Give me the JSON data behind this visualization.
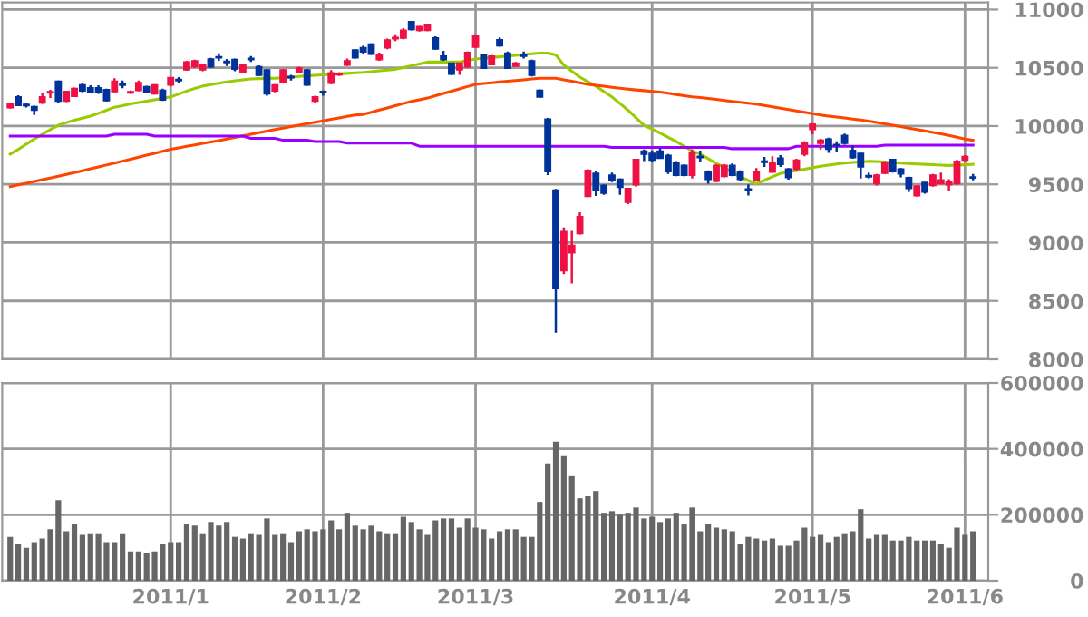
{
  "chart_data": [
    {
      "type": "candlestick",
      "tick_labels": "y",
      "grid": true,
      "ylim": [
        8000,
        11060
      ],
      "yticks": [
        8000,
        8500,
        9000,
        9500,
        10000,
        10500,
        11000
      ],
      "categories": [
        null,
        null,
        null,
        null,
        null,
        null,
        null,
        null,
        null,
        null,
        null,
        null,
        null,
        null,
        null,
        null,
        null,
        null,
        null,
        null,
        "2011/1",
        null,
        null,
        null,
        null,
        null,
        null,
        null,
        null,
        null,
        null,
        null,
        null,
        null,
        null,
        null,
        null,
        null,
        null,
        "2011/2",
        null,
        null,
        null,
        null,
        null,
        null,
        null,
        null,
        null,
        null,
        null,
        null,
        null,
        null,
        null,
        null,
        null,
        null,
        "2011/3",
        null,
        null,
        null,
        null,
        null,
        null,
        null,
        null,
        null,
        null,
        null,
        null,
        null,
        null,
        null,
        null,
        null,
        null,
        null,
        null,
        null,
        "2011/4",
        null,
        null,
        null,
        null,
        null,
        null,
        null,
        null,
        null,
        null,
        null,
        null,
        null,
        null,
        null,
        null,
        null,
        null,
        null,
        "2011/5",
        null,
        null,
        null,
        null,
        null,
        null,
        null,
        null,
        null,
        null,
        null,
        null,
        null,
        null,
        null,
        null,
        null,
        null,
        "2011/6",
        null
      ],
      "ohlc": [
        [
          10157,
          10200,
          10150,
          10188
        ],
        [
          10250,
          10265,
          10170,
          10178
        ],
        [
          10185,
          10200,
          10160,
          10175
        ],
        [
          10167,
          10175,
          10095,
          10136
        ],
        [
          10198,
          10280,
          10190,
          10250
        ],
        [
          10285,
          10310,
          10240,
          10295
        ],
        [
          10384,
          10390,
          10200,
          10214
        ],
        [
          10214,
          10300,
          10205,
          10296
        ],
        [
          10255,
          10330,
          10250,
          10322
        ],
        [
          10353,
          10370,
          10290,
          10302
        ],
        [
          10327,
          10350,
          10280,
          10290
        ],
        [
          10327,
          10350,
          10275,
          10286
        ],
        [
          10312,
          10320,
          10210,
          10219
        ],
        [
          10296,
          10410,
          10290,
          10384
        ],
        [
          10358,
          10390,
          10325,
          10350
        ],
        [
          10285,
          10305,
          10275,
          10295
        ],
        [
          10306,
          10390,
          10300,
          10373
        ],
        [
          10337,
          10345,
          10285,
          10290
        ],
        [
          10276,
          10360,
          10270,
          10353
        ],
        [
          10307,
          10320,
          10215,
          10224
        ],
        [
          10353,
          10420,
          10340,
          10415
        ],
        [
          10400,
          10420,
          10370,
          10390
        ],
        [
          10482,
          10560,
          10475,
          10549
        ],
        [
          10510,
          10570,
          10500,
          10560
        ],
        [
          10482,
          10535,
          10470,
          10523
        ],
        [
          10575,
          10585,
          10500,
          10508
        ],
        [
          10595,
          10625,
          10560,
          10585
        ],
        [
          10555,
          10575,
          10515,
          10545
        ],
        [
          10570,
          10580,
          10470,
          10488
        ],
        [
          10461,
          10530,
          10455,
          10523
        ],
        [
          10580,
          10600,
          10550,
          10570
        ],
        [
          10508,
          10520,
          10430,
          10436
        ],
        [
          10482,
          10490,
          10260,
          10276
        ],
        [
          10302,
          10360,
          10290,
          10353
        ],
        [
          10373,
          10490,
          10365,
          10482
        ],
        [
          10425,
          10440,
          10390,
          10415
        ],
        [
          10461,
          10510,
          10450,
          10497
        ],
        [
          10482,
          10490,
          10345,
          10353
        ],
        [
          10214,
          10260,
          10200,
          10250
        ],
        [
          10296,
          10305,
          10260,
          10286
        ],
        [
          10368,
          10480,
          10360,
          10456
        ],
        [
          10440,
          10460,
          10430,
          10450
        ],
        [
          10523,
          10580,
          10515,
          10560
        ],
        [
          10652,
          10660,
          10580,
          10585
        ],
        [
          10672,
          10690,
          10620,
          10636
        ],
        [
          10703,
          10710,
          10610,
          10616
        ],
        [
          10570,
          10630,
          10560,
          10616
        ],
        [
          10672,
          10750,
          10660,
          10739
        ],
        [
          10750,
          10780,
          10730,
          10760
        ],
        [
          10755,
          10840,
          10745,
          10822
        ],
        [
          10895,
          10900,
          10820,
          10828
        ],
        [
          10822,
          10860,
          10810,
          10853
        ],
        [
          10822,
          10870,
          10815,
          10864
        ],
        [
          10755,
          10770,
          10655,
          10662
        ],
        [
          10600,
          10645,
          10560,
          10570
        ],
        [
          10539,
          10545,
          10435,
          10446
        ],
        [
          10482,
          10545,
          10440,
          10539
        ],
        [
          10508,
          10640,
          10500,
          10631
        ],
        [
          10678,
          10780,
          10670,
          10771
        ],
        [
          10611,
          10620,
          10490,
          10497
        ],
        [
          10528,
          10610,
          10520,
          10600
        ],
        [
          10740,
          10760,
          10680,
          10688
        ],
        [
          10626,
          10640,
          10490,
          10497
        ],
        [
          10513,
          10550,
          10510,
          10539
        ],
        [
          10616,
          10640,
          10580,
          10600
        ],
        [
          10560,
          10570,
          10425,
          10436
        ],
        [
          10307,
          10315,
          10245,
          10250
        ],
        [
          10059,
          10070,
          9580,
          9610
        ],
        [
          9450,
          9460,
          8227,
          8609
        ],
        [
          8759,
          9130,
          8730,
          9094
        ],
        [
          8913,
          9100,
          8650,
          8975
        ],
        [
          9078,
          9260,
          9070,
          9223
        ],
        [
          9398,
          9630,
          9390,
          9620
        ],
        [
          9594,
          9610,
          9400,
          9450
        ],
        [
          9491,
          9500,
          9410,
          9424
        ],
        [
          9579,
          9600,
          9520,
          9538
        ],
        [
          9543,
          9550,
          9410,
          9476
        ],
        [
          9347,
          9470,
          9330,
          9465
        ],
        [
          9496,
          9720,
          9480,
          9713
        ],
        [
          9785,
          9800,
          9700,
          9760
        ],
        [
          9765,
          9790,
          9690,
          9708
        ],
        [
          9785,
          9810,
          9720,
          9724
        ],
        [
          9749,
          9760,
          9590,
          9610
        ],
        [
          9682,
          9700,
          9570,
          9579
        ],
        [
          9662,
          9670,
          9570,
          9579
        ],
        [
          9579,
          9800,
          9550,
          9775
        ],
        [
          9740,
          9790,
          9690,
          9730
        ],
        [
          9610,
          9620,
          9505,
          9543
        ],
        [
          9527,
          9670,
          9520,
          9662
        ],
        [
          9569,
          9675,
          9560,
          9662
        ],
        [
          9662,
          9680,
          9570,
          9579
        ],
        [
          9610,
          9620,
          9530,
          9543
        ],
        [
          9460,
          9500,
          9405,
          9450
        ],
        [
          9533,
          9640,
          9525,
          9605
        ],
        [
          9700,
          9735,
          9650,
          9690
        ],
        [
          9605,
          9740,
          9600,
          9687
        ],
        [
          9724,
          9750,
          9650,
          9672
        ],
        [
          9631,
          9640,
          9540,
          9559
        ],
        [
          9631,
          9720,
          9620,
          9708
        ],
        [
          9760,
          9870,
          9740,
          9853
        ],
        [
          9971,
          10025,
          9930,
          10017
        ],
        [
          9853,
          9890,
          9800,
          9879
        ],
        [
          9889,
          9900,
          9770,
          9801
        ],
        [
          9842,
          9870,
          9780,
          9835
        ],
        [
          9920,
          9935,
          9840,
          9853
        ],
        [
          9790,
          9830,
          9720,
          9729
        ],
        [
          9765,
          9770,
          9550,
          9651
        ],
        [
          9574,
          9600,
          9550,
          9564
        ],
        [
          9507,
          9590,
          9490,
          9579
        ],
        [
          9595,
          9700,
          9590,
          9682
        ],
        [
          9713,
          9720,
          9600,
          9610
        ],
        [
          9631,
          9640,
          9560,
          9589
        ],
        [
          9558,
          9565,
          9435,
          9465
        ],
        [
          9403,
          9490,
          9395,
          9486
        ],
        [
          9517,
          9520,
          9420,
          9434
        ],
        [
          9491,
          9590,
          9480,
          9579
        ],
        [
          9507,
          9600,
          9500,
          9538
        ],
        [
          9496,
          9545,
          9440,
          9527
        ],
        [
          9507,
          9710,
          9495,
          9698
        ],
        [
          9708,
          9750,
          9700,
          9739
        ],
        [
          9563,
          9590,
          9535,
          9555
        ]
      ],
      "colors": [
        "#ee1144",
        "#003399",
        "#003399",
        "#003399",
        "#ee1144",
        "#ee1144",
        "#003399",
        "#ee1144",
        "#ee1144",
        "#003399",
        "#003399",
        "#003399",
        "#003399",
        "#ee1144",
        "#003399",
        "#ee1144",
        "#ee1144",
        "#003399",
        "#ee1144",
        "#003399",
        "#ee1144",
        "#003399",
        "#ee1144",
        "#ee1144",
        "#ee1144",
        "#003399",
        "#003399",
        "#003399",
        "#003399",
        "#ee1144",
        "#003399",
        "#003399",
        "#003399",
        "#ee1144",
        "#ee1144",
        "#003399",
        "#ee1144",
        "#003399",
        "#ee1144",
        "#003399",
        "#ee1144",
        "#ee1144",
        "#ee1144",
        "#003399",
        "#003399",
        "#003399",
        "#ee1144",
        "#ee1144",
        "#ee1144",
        "#ee1144",
        "#003399",
        "#ee1144",
        "#ee1144",
        "#003399",
        "#003399",
        "#003399",
        "#ee1144",
        "#ee1144",
        "#ee1144",
        "#003399",
        "#ee1144",
        "#003399",
        "#003399",
        "#ee1144",
        "#003399",
        "#003399",
        "#003399",
        "#003399",
        "#003399",
        "#ee1144",
        "#ee1144",
        "#ee1144",
        "#ee1144",
        "#003399",
        "#003399",
        "#003399",
        "#003399",
        "#ee1144",
        "#ee1144",
        "#003399",
        "#003399",
        "#003399",
        "#003399",
        "#003399",
        "#003399",
        "#ee1144",
        "#003399",
        "#003399",
        "#ee1144",
        "#ee1144",
        "#003399",
        "#003399",
        "#003399",
        "#ee1144",
        "#003399",
        "#ee1144",
        "#003399",
        "#003399",
        "#ee1144",
        "#ee1144",
        "#ee1144",
        "#ee1144",
        "#003399",
        "#003399",
        "#003399",
        "#003399",
        "#003399",
        "#003399",
        "#ee1144",
        "#ee1144",
        "#003399",
        "#003399",
        "#003399",
        "#ee1144",
        "#003399",
        "#ee1144",
        "#ee1144",
        "#ee1144",
        "#ee1144",
        "#ee1144",
        "#003399"
      ],
      "series": [
        {
          "type": "line",
          "color": "#99cc00",
          "values": [
            9760,
            9800,
            9845,
            9889,
            9930,
            9970,
            10007,
            10030,
            10050,
            10068,
            10085,
            10110,
            10136,
            10162,
            10175,
            10190,
            10202,
            10214,
            10226,
            10238,
            10250,
            10275,
            10300,
            10322,
            10343,
            10355,
            10367,
            10379,
            10388,
            10397,
            10405,
            10407,
            10409,
            10410,
            10415,
            10420,
            10426,
            10431,
            10436,
            10440,
            10444,
            10448,
            10452,
            10456,
            10460,
            10467,
            10474,
            10480,
            10487,
            10502,
            10518,
            10533,
            10549,
            10549,
            10549,
            10549,
            10549,
            10562,
            10575,
            10581,
            10588,
            10594,
            10600,
            10606,
            10613,
            10620,
            10626,
            10626,
            10610,
            10523,
            10470,
            10420,
            10380,
            10343,
            10296,
            10250,
            10193,
            10136,
            10070,
            10007,
            9973,
            9940,
            9904,
            9868,
            9826,
            9785,
            9760,
            9720,
            9680,
            9646,
            9600,
            9565,
            9533,
            9507,
            9535,
            9565,
            9594,
            9606,
            9618,
            9631,
            9644,
            9656,
            9665,
            9674,
            9682,
            9688,
            9693,
            9698,
            9696,
            9692,
            9687,
            9682,
            9679,
            9675,
            9672,
            9669,
            9665,
            9662,
            9665,
            9668,
            9672
          ]
        },
        {
          "type": "line",
          "color": "#ff4400",
          "values": [
            9481,
            9496,
            9510,
            9525,
            9540,
            9555,
            9569,
            9585,
            9601,
            9617,
            9634,
            9650,
            9666,
            9682,
            9699,
            9716,
            9733,
            9750,
            9767,
            9784,
            9801,
            9813,
            9826,
            9838,
            9851,
            9864,
            9876,
            9889,
            9903,
            9916,
            9930,
            9944,
            9957,
            9971,
            9983,
            9996,
            10008,
            10021,
            10033,
            10045,
            10058,
            10070,
            10083,
            10095,
            10100,
            10118,
            10137,
            10155,
            10174,
            10193,
            10211,
            10226,
            10240,
            10260,
            10280,
            10299,
            10319,
            10339,
            10358,
            10365,
            10371,
            10378,
            10384,
            10391,
            10397,
            10404,
            10410,
            10410,
            10410,
            10397,
            10384,
            10371,
            10358,
            10350,
            10342,
            10333,
            10325,
            10317,
            10310,
            10304,
            10297,
            10291,
            10281,
            10271,
            10261,
            10250,
            10245,
            10237,
            10229,
            10220,
            10212,
            10204,
            10196,
            10188,
            10176,
            10165,
            10153,
            10141,
            10130,
            10118,
            10107,
            10095,
            10086,
            10078,
            10069,
            10060,
            10052,
            10043,
            10031,
            10019,
            10007,
            9995,
            9983,
            9971,
            9958,
            9945,
            9933,
            9920,
            9905,
            9889,
            9878
          ]
        },
        {
          "type": "line",
          "color": "#9900ff",
          "values": [
            9914,
            9914,
            9914,
            9914,
            9914,
            9914,
            9914,
            9914,
            9914,
            9914,
            9914,
            9914,
            9914,
            9930,
            9930,
            9930,
            9930,
            9930,
            9914,
            9914,
            9914,
            9914,
            9914,
            9914,
            9914,
            9914,
            9914,
            9914,
            9914,
            9914,
            9894,
            9894,
            9894,
            9894,
            9878,
            9878,
            9878,
            9878,
            9868,
            9868,
            9868,
            9868,
            9853,
            9853,
            9853,
            9853,
            9853,
            9853,
            9853,
            9853,
            9853,
            9827,
            9827,
            9827,
            9827,
            9827,
            9827,
            9827,
            9827,
            9827,
            9827,
            9827,
            9827,
            9827,
            9827,
            9827,
            9827,
            9827,
            9827,
            9827,
            9827,
            9827,
            9827,
            9827,
            9827,
            9817,
            9817,
            9817,
            9817,
            9817,
            9817,
            9817,
            9817,
            9817,
            9817,
            9817,
            9817,
            9817,
            9817,
            9817,
            9806,
            9806,
            9806,
            9806,
            9806,
            9806,
            9806,
            9806,
            9827,
            9827,
            9827,
            9827,
            9827,
            9827,
            9827,
            9827,
            9827,
            9827,
            9827,
            9837,
            9837,
            9837,
            9837,
            9837,
            9837,
            9837,
            9837,
            9837,
            9837,
            9837,
            9837
          ]
        }
      ]
    },
    {
      "type": "bar",
      "grid": true,
      "color": "#666666",
      "ylim": [
        0,
        600000
      ],
      "yticks": [
        0,
        200000,
        400000,
        600000
      ],
      "categories": [
        null,
        null,
        null,
        null,
        null,
        null,
        null,
        null,
        null,
        null,
        null,
        null,
        null,
        null,
        null,
        null,
        null,
        null,
        null,
        null,
        "2011/1",
        null,
        null,
        null,
        null,
        null,
        null,
        null,
        null,
        null,
        null,
        null,
        null,
        null,
        null,
        null,
        null,
        null,
        null,
        "2011/2",
        null,
        null,
        null,
        null,
        null,
        null,
        null,
        null,
        null,
        null,
        null,
        null,
        null,
        null,
        null,
        null,
        null,
        null,
        "2011/3",
        null,
        null,
        null,
        null,
        null,
        null,
        null,
        null,
        null,
        null,
        null,
        null,
        null,
        null,
        null,
        null,
        null,
        null,
        null,
        null,
        null,
        "2011/4",
        null,
        null,
        null,
        null,
        null,
        null,
        null,
        null,
        null,
        null,
        null,
        null,
        null,
        null,
        null,
        null,
        null,
        null,
        null,
        "2011/5",
        null,
        null,
        null,
        null,
        null,
        null,
        null,
        null,
        null,
        null,
        null,
        null,
        null,
        null,
        null,
        null,
        null,
        null,
        "2011/6",
        null
      ],
      "values": [
        133000,
        111000,
        100000,
        117000,
        128000,
        156000,
        244000,
        150000,
        172000,
        139000,
        144000,
        144000,
        117000,
        117000,
        144000,
        89000,
        89000,
        83000,
        89000,
        111000,
        117000,
        117000,
        172000,
        167000,
        144000,
        178000,
        167000,
        178000,
        133000,
        128000,
        144000,
        139000,
        189000,
        139000,
        144000,
        117000,
        150000,
        156000,
        150000,
        156000,
        183000,
        156000,
        206000,
        167000,
        156000,
        167000,
        150000,
        144000,
        144000,
        194000,
        178000,
        156000,
        139000,
        183000,
        189000,
        189000,
        161000,
        189000,
        161000,
        156000,
        128000,
        150000,
        156000,
        156000,
        133000,
        133000,
        239000,
        356000,
        422000,
        378000,
        317000,
        250000,
        256000,
        272000,
        206000,
        211000,
        200000,
        206000,
        222000,
        189000,
        194000,
        178000,
        189000,
        206000,
        172000,
        222000,
        150000,
        172000,
        161000,
        156000,
        150000,
        111000,
        133000,
        128000,
        122000,
        128000,
        106000,
        106000,
        122000,
        161000,
        133000,
        139000,
        117000,
        133000,
        144000,
        150000,
        217000,
        128000,
        139000,
        139000,
        122000,
        122000,
        133000,
        122000,
        122000,
        122000,
        111000,
        100000,
        161000,
        139000,
        150000
      ]
    }
  ]
}
